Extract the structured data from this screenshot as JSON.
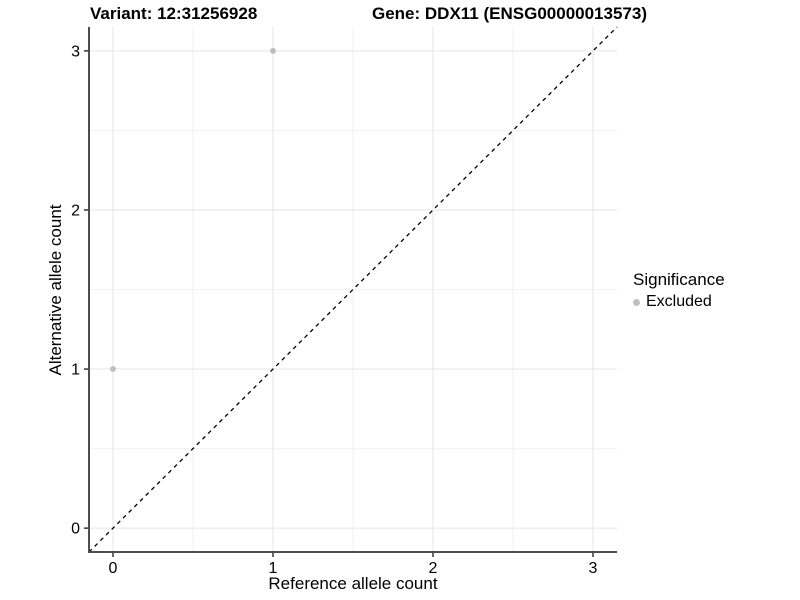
{
  "titles": {
    "variant": "Variant: 12:31256928",
    "gene": "Gene: DDX11 (ENSG00000013573)"
  },
  "chart_data": {
    "type": "scatter",
    "xlabel": "Reference allele count",
    "ylabel": "Alternative allele count",
    "xlim": [
      -0.15,
      3.15
    ],
    "ylim": [
      -0.15,
      3.15
    ],
    "x_ticks": [
      0,
      1,
      2,
      3
    ],
    "y_ticks": [
      0,
      1,
      2,
      3
    ],
    "minor_grid": [
      0.5,
      1.5,
      2.5
    ],
    "grid": true,
    "legend_position": "right",
    "identity_line": {
      "style": "dashed",
      "from": -0.15,
      "to": 3.15,
      "color": "#000000"
    },
    "series": [
      {
        "name": "Excluded",
        "color": "#bfbfbf",
        "points": [
          {
            "x": 0,
            "y": 1
          },
          {
            "x": 1,
            "y": 3
          }
        ]
      }
    ],
    "legend": {
      "title": "Significance",
      "items": [
        {
          "label": "Excluded",
          "color": "#bfbfbf"
        }
      ]
    }
  },
  "colors": {
    "background": "#ffffff",
    "grid_major": "#e6e6e6",
    "grid_minor": "#f2f2f2",
    "axis_line": "#4d4d4d",
    "tick_mark": "#333333",
    "text": "#000000"
  }
}
